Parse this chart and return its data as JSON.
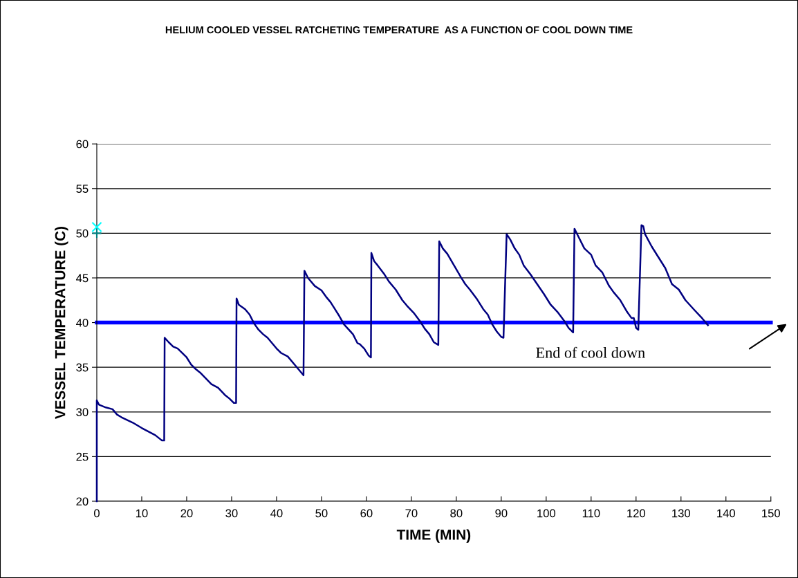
{
  "chart_data": {
    "type": "line",
    "title": "HELIUM COOLED VESSEL RATCHETING TEMPERATURE  AS A FUNCTION OF COOL DOWN TIME",
    "xlabel": "TIME (MIN)",
    "ylabel": "VESSEL TEMPERATURE (C)",
    "xlim": [
      0,
      150
    ],
    "xticks": [
      0,
      10,
      20,
      30,
      40,
      50,
      60,
      70,
      80,
      90,
      100,
      110,
      120,
      130,
      140,
      150
    ],
    "ylim": [
      20,
      60
    ],
    "yticks": [
      20,
      25,
      30,
      35,
      40,
      45,
      50,
      55,
      60
    ],
    "grid": "y",
    "legend": false,
    "marker": "none",
    "line_style": "solid",
    "ref_lines": [
      {
        "axis": "y",
        "value": 40,
        "color": "#0000ff"
      }
    ],
    "annotations": [
      "End of cool down"
    ],
    "series": [
      {
        "color": "#000080",
        "x": [
          0,
          0,
          0.5,
          2,
          3.5,
          4.5,
          5.5,
          8,
          10,
          13,
          14.5,
          15,
          15.1,
          16,
          17,
          18,
          20,
          21,
          22,
          23,
          25.5,
          27,
          28.5,
          29.5,
          30.5,
          31,
          31.1,
          31.6,
          33,
          34,
          35,
          36,
          37,
          38,
          40,
          41,
          42.5,
          44,
          45,
          46,
          46.2,
          47,
          48.5,
          50,
          51,
          52,
          53,
          54,
          55,
          57,
          58,
          58.5,
          59.5,
          60.5,
          61,
          61.1,
          61.7,
          62.5,
          64,
          65,
          66.5,
          68,
          69,
          70.5,
          72,
          73,
          74,
          75,
          76,
          76.2,
          77,
          78,
          79.5,
          81,
          82,
          83,
          84.5,
          86,
          87,
          88,
          89,
          90,
          90.5,
          91.2,
          92,
          93,
          94,
          95,
          96.5,
          98,
          99.5,
          101,
          102.5,
          104,
          105,
          106,
          106.3,
          107,
          108.5,
          110,
          111,
          112.5,
          114,
          115,
          116.5,
          118,
          119,
          119.5,
          120,
          120.5,
          121.2,
          121.6,
          122,
          123.5,
          125,
          126.5,
          128,
          129.5,
          131,
          133,
          134.5,
          136
        ],
        "values": [
          20,
          31.3,
          30.8,
          30.5,
          30.3,
          29.7,
          29.4,
          28.8,
          28.2,
          27.4,
          26.8,
          26.8,
          38.3,
          37.8,
          37.3,
          37.1,
          36.1,
          35.3,
          34.8,
          34.4,
          33.1,
          32.7,
          31.9,
          31.5,
          31.0,
          31.0,
          42.7,
          42.0,
          41.5,
          40.9,
          39.9,
          39.2,
          38.7,
          38.3,
          37.1,
          36.6,
          36.2,
          35.3,
          34.7,
          34.1,
          45.8,
          45.0,
          44.1,
          43.6,
          42.9,
          42.3,
          41.5,
          40.7,
          39.8,
          38.7,
          37.7,
          37.6,
          37.1,
          36.3,
          36.1,
          47.8,
          46.9,
          46.4,
          45.4,
          44.6,
          43.7,
          42.5,
          41.9,
          41.1,
          40.1,
          39.3,
          38.7,
          37.8,
          37.5,
          49.1,
          48.3,
          47.7,
          46.4,
          45.1,
          44.3,
          43.7,
          42.7,
          41.5,
          40.9,
          39.8,
          39.0,
          38.4,
          38.3,
          49.9,
          49.3,
          48.3,
          47.6,
          46.4,
          45.4,
          44.3,
          43.2,
          42.0,
          41.2,
          40.2,
          39.4,
          38.9,
          50.5,
          49.8,
          48.3,
          47.6,
          46.4,
          45.6,
          44.1,
          43.4,
          42.5,
          41.2,
          40.5,
          40.5,
          39.4,
          39.2,
          50.9,
          50.8,
          49.9,
          48.5,
          47.3,
          46.1,
          44.3,
          43.7,
          42.5,
          41.4,
          40.6,
          39.7
        ]
      },
      {
        "type": "scatter",
        "color": "#00ffff",
        "marker": "cross",
        "x": [
          0
        ],
        "values": [
          50.7
        ]
      },
      {
        "type": "scatter",
        "color": "#008080",
        "marker": "plus",
        "x": [
          0
        ],
        "values": [
          50
        ]
      }
    ]
  }
}
